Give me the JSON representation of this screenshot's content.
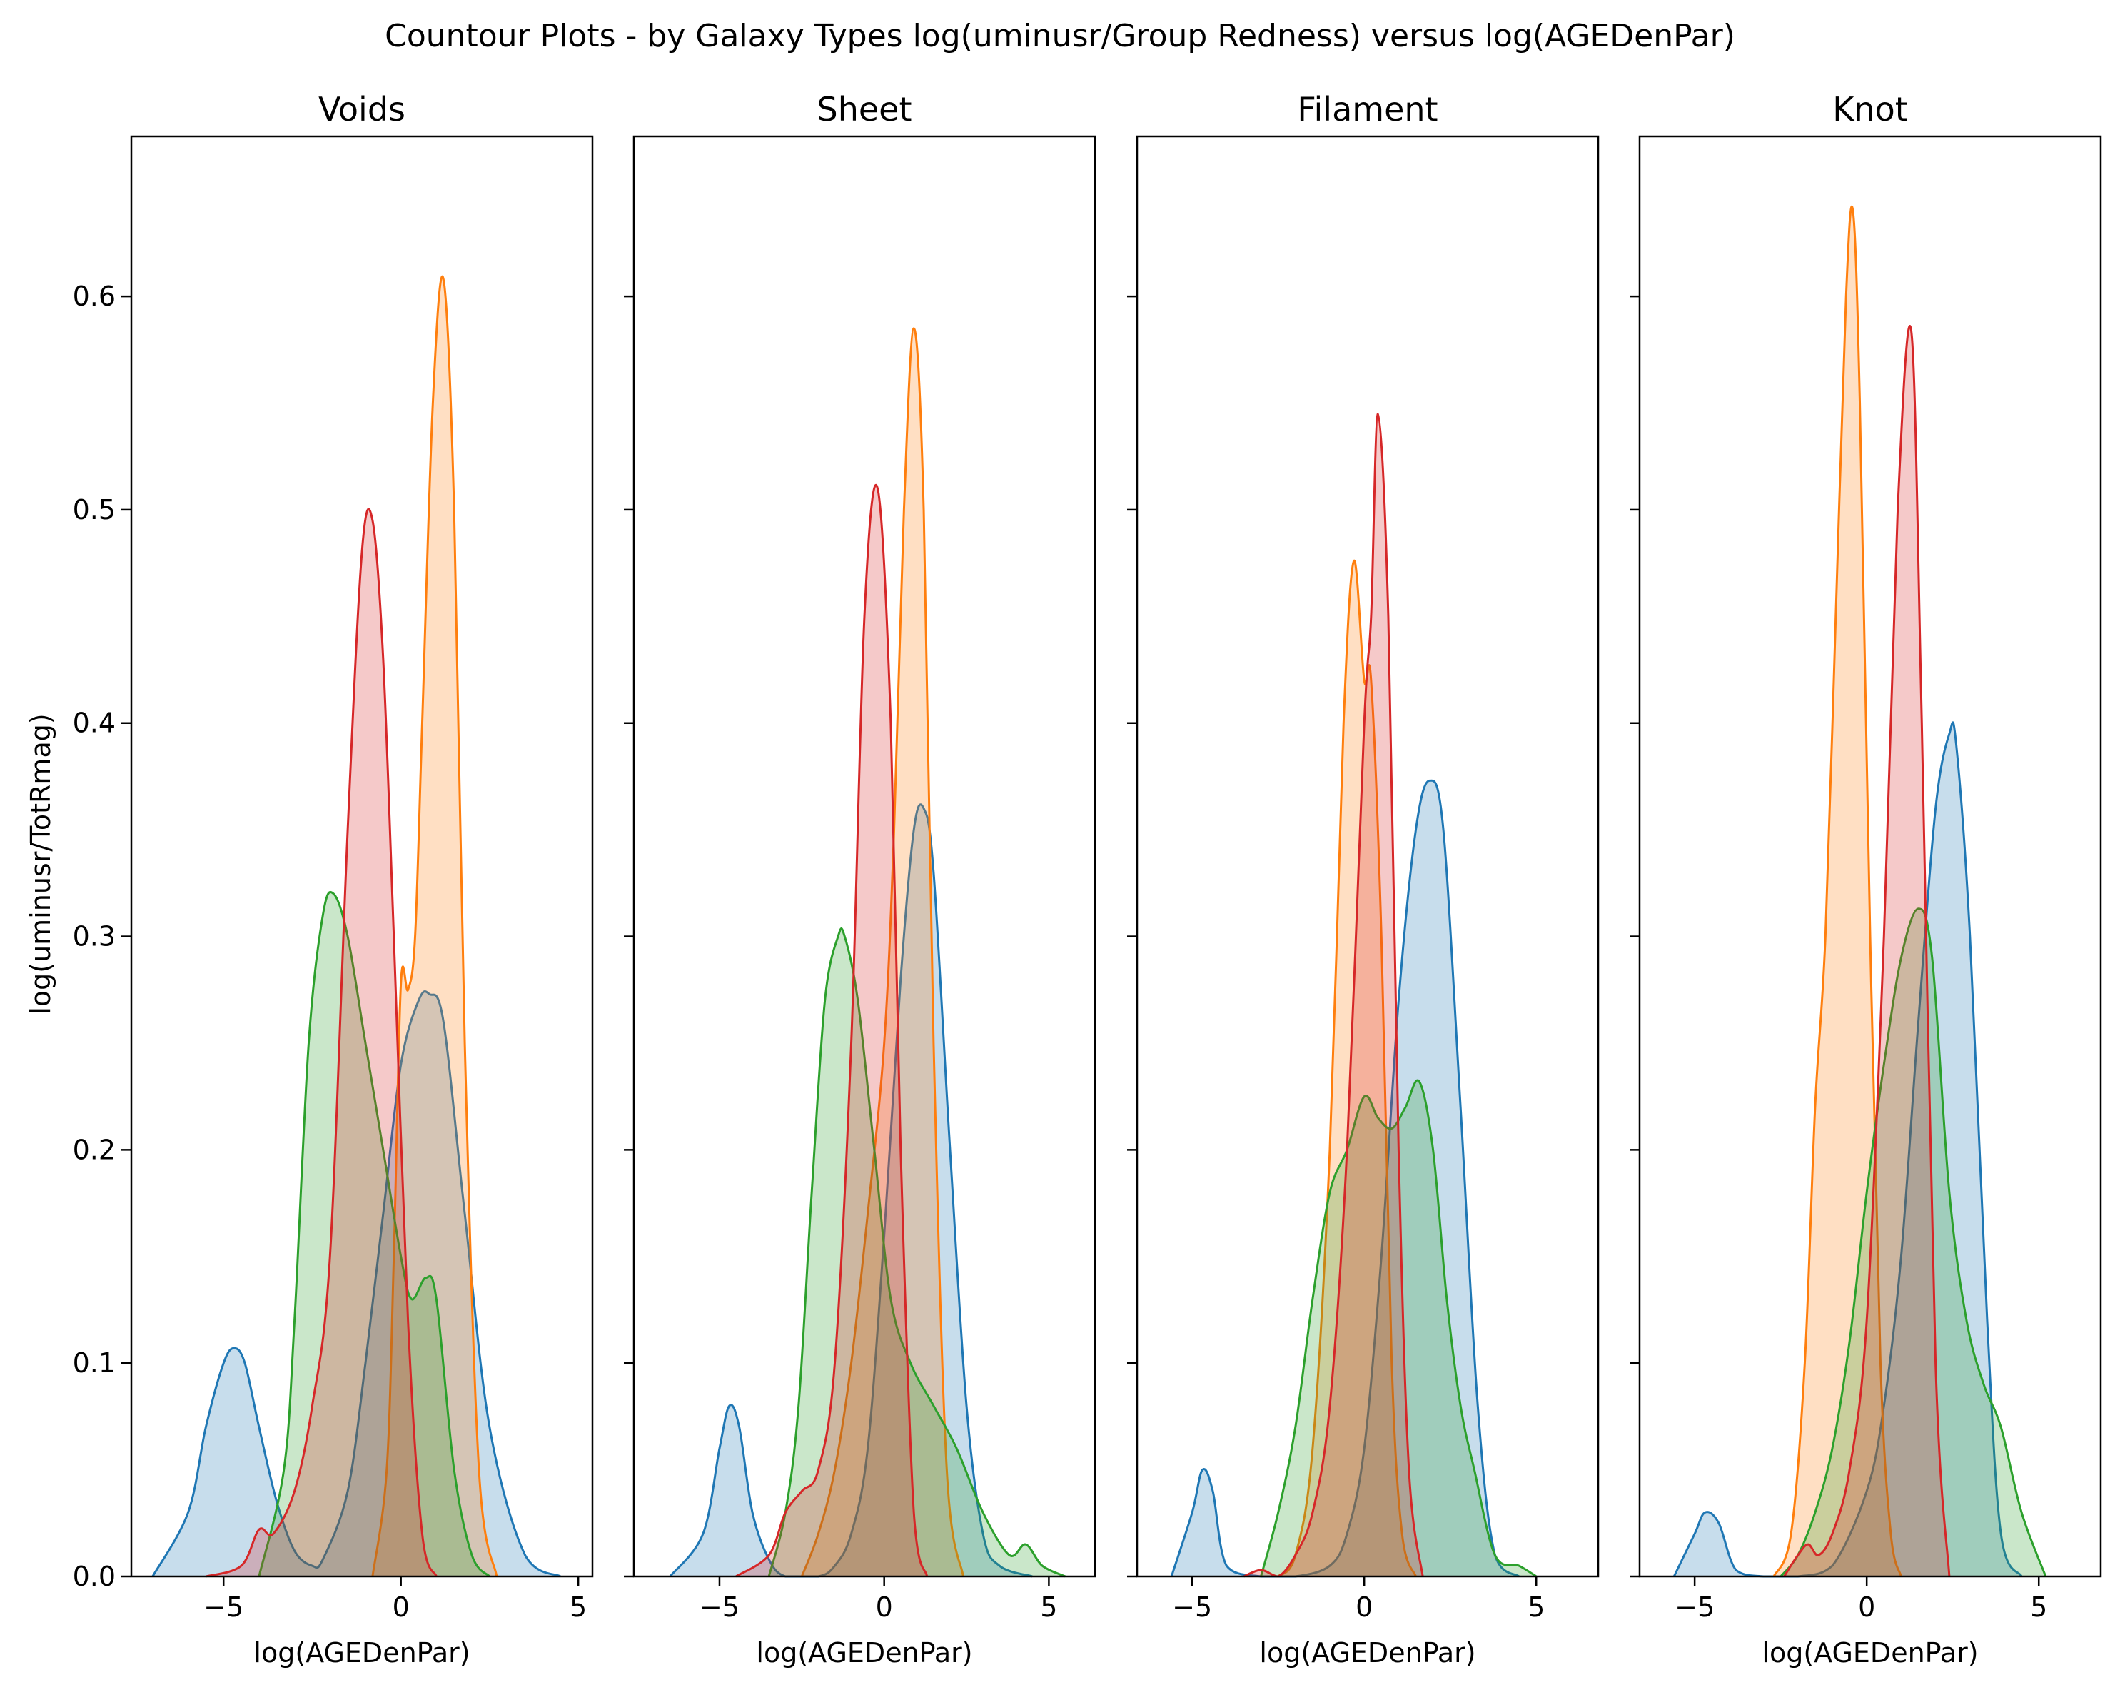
{
  "chart_data": {
    "type": "area",
    "title": "Countour Plots - by Galaxy Types log(uminusr/Group Redness) versus log(AGEDenPar)",
    "ylabel": "log(uminusr/TotRmag)",
    "xlabel": "log(AGEDenPar)",
    "ylim": [
      0,
      0.675
    ],
    "yticks": [
      0.0,
      0.1,
      0.2,
      0.3,
      0.4,
      0.5,
      0.6
    ],
    "grid": false,
    "legend": "none",
    "series_colors": [
      "#1f77b4",
      "#ff7f0e",
      "#2ca02c",
      "#d62728"
    ],
    "fill_opacity": 0.25,
    "panels": [
      {
        "title": "Voids",
        "xlim": [
          -7.6,
          5.4
        ],
        "xticks": [
          -5,
          0,
          5
        ],
        "series": [
          {
            "color": "#1f77b4",
            "x": [
              -7.0,
              -6.0,
              -5.5,
              -5.0,
              -4.7,
              -4.4,
              -4.0,
              -3.5,
              -3.0,
              -2.5,
              -2.2,
              -1.5,
              -1.0,
              -0.5,
              0.0,
              0.5,
              0.8,
              1.2,
              1.8,
              2.5,
              3.5,
              4.5
            ],
            "y": [
              0.0,
              0.03,
              0.07,
              0.1,
              0.107,
              0.1,
              0.07,
              0.035,
              0.012,
              0.005,
              0.008,
              0.04,
              0.1,
              0.17,
              0.24,
              0.27,
              0.273,
              0.26,
              0.17,
              0.07,
              0.01,
              0.0
            ]
          },
          {
            "color": "#ff7f0e",
            "x": [
              -0.8,
              -0.4,
              -0.2,
              0.0,
              0.2,
              0.4,
              0.6,
              0.9,
              1.2,
              1.5,
              1.8,
              2.2,
              2.7
            ],
            "y": [
              0.0,
              0.05,
              0.15,
              0.278,
              0.275,
              0.3,
              0.4,
              0.55,
              0.608,
              0.5,
              0.25,
              0.05,
              0.0
            ]
          },
          {
            "color": "#2ca02c",
            "x": [
              -4.0,
              -3.3,
              -3.0,
              -2.6,
              -2.2,
              -1.9,
              -1.5,
              -1.0,
              -0.5,
              0.0,
              0.3,
              0.7,
              1.0,
              1.5,
              2.0,
              2.5
            ],
            "y": [
              0.0,
              0.05,
              0.12,
              0.25,
              0.31,
              0.32,
              0.3,
              0.25,
              0.2,
              0.15,
              0.13,
              0.14,
              0.13,
              0.05,
              0.01,
              0.0
            ]
          },
          {
            "color": "#d62728",
            "x": [
              -5.5,
              -4.5,
              -4.0,
              -3.6,
              -3.0,
              -2.5,
              -2.0,
              -1.5,
              -1.1,
              -0.8,
              -0.5,
              -0.2,
              0.2,
              0.6,
              1.0
            ],
            "y": [
              0.0,
              0.005,
              0.022,
              0.02,
              0.04,
              0.08,
              0.15,
              0.35,
              0.48,
              0.495,
              0.43,
              0.3,
              0.12,
              0.02,
              0.0
            ]
          }
        ]
      },
      {
        "title": "Sheet",
        "xlim": [
          -7.6,
          6.4
        ],
        "xticks": [
          -5,
          0,
          5
        ],
        "series": [
          {
            "color": "#1f77b4",
            "x": [
              -6.5,
              -5.5,
              -5.0,
              -4.7,
              -4.4,
              -4.0,
              -3.5,
              -3.0,
              -2.0,
              -1.5,
              -1.0,
              -0.5,
              0.0,
              0.5,
              0.9,
              1.2,
              1.5,
              2.0,
              2.5,
              3.0,
              3.5,
              4.5
            ],
            "y": [
              0.0,
              0.02,
              0.06,
              0.08,
              0.07,
              0.03,
              0.008,
              0.0,
              0.0,
              0.005,
              0.02,
              0.06,
              0.16,
              0.28,
              0.35,
              0.36,
              0.33,
              0.2,
              0.08,
              0.02,
              0.005,
              0.0
            ]
          },
          {
            "color": "#ff7f0e",
            "x": [
              -2.5,
              -2.0,
              -1.5,
              -1.0,
              -0.5,
              0.0,
              0.3,
              0.6,
              0.9,
              1.2,
              1.5,
              1.9,
              2.4
            ],
            "y": [
              0.0,
              0.02,
              0.05,
              0.1,
              0.17,
              0.25,
              0.35,
              0.5,
              0.585,
              0.5,
              0.25,
              0.05,
              0.0
            ]
          },
          {
            "color": "#2ca02c",
            "x": [
              -3.5,
              -3.0,
              -2.6,
              -2.2,
              -1.8,
              -1.4,
              -1.2,
              -0.8,
              -0.3,
              0.2,
              0.8,
              1.5,
              2.2,
              3.0,
              3.8,
              4.3,
              4.8,
              5.5
            ],
            "y": [
              0.0,
              0.03,
              0.08,
              0.18,
              0.27,
              0.3,
              0.3,
              0.27,
              0.2,
              0.13,
              0.1,
              0.08,
              0.06,
              0.03,
              0.01,
              0.015,
              0.005,
              0.0
            ]
          },
          {
            "color": "#d62728",
            "x": [
              -4.5,
              -3.5,
              -3.0,
              -2.5,
              -2.0,
              -1.5,
              -1.0,
              -0.6,
              -0.2,
              0.2,
              0.5,
              0.9,
              1.3
            ],
            "y": [
              0.0,
              0.01,
              0.03,
              0.04,
              0.05,
              0.1,
              0.25,
              0.45,
              0.51,
              0.4,
              0.2,
              0.03,
              0.0
            ]
          }
        ]
      },
      {
        "title": "Filament",
        "xlim": [
          -6.6,
          6.8
        ],
        "xticks": [
          -5,
          0,
          5
        ],
        "series": [
          {
            "color": "#1f77b4",
            "x": [
              -5.6,
              -5.0,
              -4.7,
              -4.4,
              -4.0,
              -3.0,
              -2.0,
              -1.0,
              -0.5,
              0.0,
              0.5,
              1.0,
              1.5,
              1.9,
              2.3,
              2.8,
              3.3,
              3.8,
              4.5
            ],
            "y": [
              0.0,
              0.03,
              0.05,
              0.04,
              0.005,
              0.0,
              0.0,
              0.005,
              0.02,
              0.06,
              0.15,
              0.27,
              0.35,
              0.373,
              0.35,
              0.22,
              0.08,
              0.01,
              0.0
            ]
          },
          {
            "color": "#ff7f0e",
            "x": [
              -2.5,
              -2.0,
              -1.5,
              -1.0,
              -0.6,
              -0.3,
              0.0,
              0.2,
              0.5,
              0.8,
              1.1,
              1.5
            ],
            "y": [
              0.0,
              0.01,
              0.06,
              0.2,
              0.4,
              0.476,
              0.42,
              0.42,
              0.3,
              0.1,
              0.02,
              0.0
            ]
          },
          {
            "color": "#2ca02c",
            "x": [
              -3.0,
              -2.5,
              -2.0,
              -1.5,
              -1.0,
              -0.5,
              0.0,
              0.4,
              0.8,
              1.2,
              1.6,
              2.0,
              2.4,
              2.8,
              3.2,
              3.8,
              4.5,
              5.0
            ],
            "y": [
              0.0,
              0.03,
              0.07,
              0.13,
              0.18,
              0.2,
              0.225,
              0.215,
              0.21,
              0.22,
              0.232,
              0.2,
              0.13,
              0.08,
              0.05,
              0.01,
              0.005,
              0.0
            ]
          },
          {
            "color": "#d62728",
            "x": [
              -3.5,
              -3.0,
              -2.5,
              -2.0,
              -1.5,
              -1.0,
              -0.5,
              0.0,
              0.2,
              0.4,
              0.7,
              1.0,
              1.3,
              1.7
            ],
            "y": [
              0.0,
              0.003,
              0.0,
              0.01,
              0.03,
              0.08,
              0.2,
              0.4,
              0.45,
              0.545,
              0.45,
              0.2,
              0.05,
              0.0
            ]
          }
        ]
      },
      {
        "title": "Knot",
        "xlim": [
          -6.6,
          6.8
        ],
        "xticks": [
          -5,
          0,
          5
        ],
        "series": [
          {
            "color": "#1f77b4",
            "x": [
              -5.6,
              -5.0,
              -4.7,
              -4.3,
              -3.8,
              -3.0,
              -2.0,
              -1.0,
              0.0,
              0.5,
              1.0,
              1.5,
              2.0,
              2.4,
              2.6,
              3.0,
              3.5,
              3.9,
              4.5
            ],
            "y": [
              0.0,
              0.02,
              0.03,
              0.025,
              0.003,
              0.0,
              0.0,
              0.005,
              0.04,
              0.08,
              0.15,
              0.26,
              0.36,
              0.395,
              0.39,
              0.3,
              0.12,
              0.02,
              0.0
            ]
          },
          {
            "color": "#ff7f0e",
            "x": [
              -2.7,
              -2.2,
              -1.8,
              -1.5,
              -1.2,
              -0.9,
              -0.6,
              -0.4,
              -0.2,
              0.1,
              0.4,
              0.7,
              1.0
            ],
            "y": [
              0.0,
              0.02,
              0.1,
              0.22,
              0.3,
              0.45,
              0.6,
              0.64,
              0.55,
              0.3,
              0.1,
              0.02,
              0.0
            ]
          },
          {
            "color": "#2ca02c",
            "x": [
              -2.5,
              -2.0,
              -1.5,
              -1.0,
              -0.5,
              0.0,
              0.5,
              1.0,
              1.5,
              1.9,
              2.4,
              2.9,
              3.4,
              3.9,
              4.5,
              5.2
            ],
            "y": [
              0.0,
              0.01,
              0.03,
              0.06,
              0.11,
              0.18,
              0.24,
              0.29,
              0.313,
              0.29,
              0.18,
              0.12,
              0.09,
              0.07,
              0.03,
              0.0
            ]
          },
          {
            "color": "#d62728",
            "x": [
              -2.4,
              -2.0,
              -1.7,
              -1.4,
              -1.0,
              -0.5,
              0.0,
              0.5,
              0.9,
              1.3,
              1.6,
              2.0,
              2.4
            ],
            "y": [
              0.0,
              0.01,
              0.015,
              0.01,
              0.02,
              0.05,
              0.12,
              0.3,
              0.5,
              0.583,
              0.4,
              0.1,
              0.0
            ]
          }
        ]
      }
    ]
  }
}
